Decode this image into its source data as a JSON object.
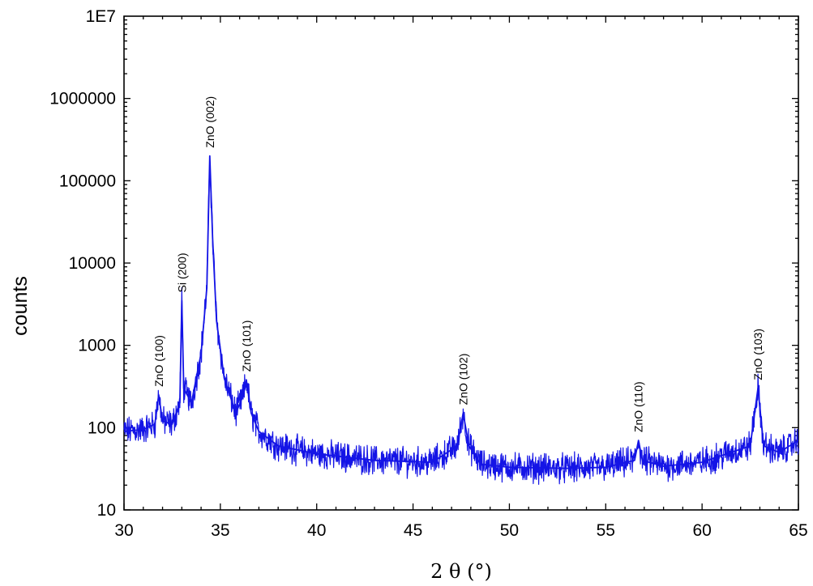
{
  "chart_data": {
    "type": "line",
    "xlabel": "2 θ (°)",
    "ylabel": "counts",
    "xlim": [
      30,
      65
    ],
    "ylim": [
      10,
      10000000
    ],
    "yscale": "log",
    "grid": false,
    "series_color": "#1414e6",
    "x_ticks": [
      "30",
      "35",
      "40",
      "45",
      "50",
      "55",
      "60",
      "65"
    ],
    "x_tick_values": [
      30,
      35,
      40,
      45,
      50,
      55,
      60,
      65
    ],
    "y_ticks": [
      "10",
      "100",
      "1000",
      "10000",
      "100000",
      "1000000",
      "1E7"
    ],
    "y_tick_values": [
      10,
      100,
      1000,
      10000,
      100000,
      1000000,
      10000000
    ],
    "series": [
      {
        "x": [
          30.0,
          31.0,
          31.6,
          31.8,
          32.0,
          32.5,
          32.9,
          33.0,
          33.1,
          33.5,
          34.0,
          34.3,
          34.45,
          34.6,
          34.8,
          35.2,
          35.8,
          36.2,
          36.35,
          36.6,
          37.0,
          38.0,
          40.0,
          43.0,
          46.0,
          47.3,
          47.6,
          47.9,
          48.5,
          50.0,
          53.0,
          55.0,
          56.5,
          56.7,
          56.9,
          58.0,
          60.0,
          62.5,
          62.9,
          63.2,
          64.0,
          65.0
        ],
        "y": [
          90,
          95,
          110,
          250,
          120,
          110,
          200,
          3500,
          300,
          200,
          800,
          5000,
          200000,
          20000,
          2000,
          400,
          150,
          250,
          380,
          150,
          90,
          60,
          48,
          40,
          38,
          60,
          150,
          60,
          36,
          33,
          32,
          33,
          40,
          70,
          40,
          34,
          38,
          60,
          300,
          60,
          50,
          70
        ]
      }
    ],
    "annotations": [
      {
        "text": "ZnO (100)",
        "x": 31.8,
        "y": 250
      },
      {
        "text": "Si (200)",
        "x": 33.0,
        "y": 3500
      },
      {
        "text": "ZnO (002)",
        "x": 34.45,
        "y": 200000
      },
      {
        "text": "ZnO (101)",
        "x": 36.35,
        "y": 380
      },
      {
        "text": "ZnO (102)",
        "x": 47.6,
        "y": 150
      },
      {
        "text": "ZnO (110)",
        "x": 56.7,
        "y": 70
      },
      {
        "text": "ZnO (103)",
        "x": 62.9,
        "y": 300
      }
    ]
  }
}
